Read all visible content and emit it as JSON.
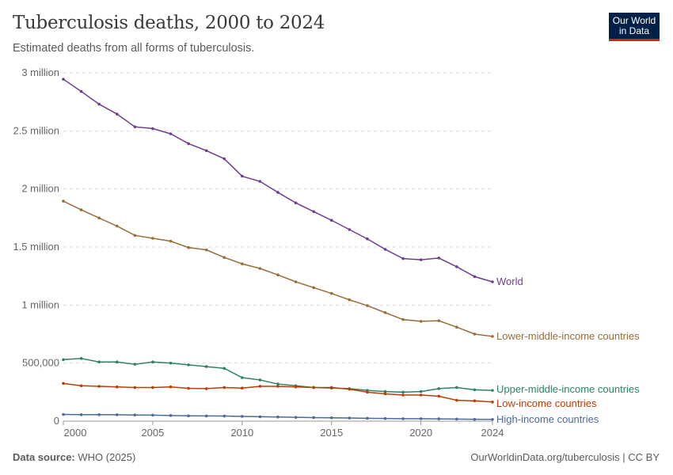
{
  "header": {
    "title": "Tuberculosis deaths, 2000 to 2024",
    "subtitle": "Estimated deaths from all forms of tuberculosis.",
    "logo_text": "Our World in Data"
  },
  "footer": {
    "source_label": "Data source:",
    "source_value": "WHO (2025)",
    "url": "OurWorldinData.org/tuberculosis | CC BY"
  },
  "chart_data": {
    "type": "line",
    "title": "Tuberculosis deaths, 2000 to 2024",
    "subtitle": "Estimated deaths from all forms of tuberculosis.",
    "x": [
      2000,
      2001,
      2002,
      2003,
      2004,
      2005,
      2006,
      2007,
      2008,
      2009,
      2010,
      2011,
      2012,
      2013,
      2014,
      2015,
      2016,
      2017,
      2018,
      2019,
      2020,
      2021,
      2022,
      2023,
      2024
    ],
    "xlim": [
      2000,
      2024
    ],
    "ylim": [
      0,
      3000000
    ],
    "xticks": [
      {
        "v": 2000,
        "label": "2000"
      },
      {
        "v": 2005,
        "label": "2005"
      },
      {
        "v": 2010,
        "label": "2010"
      },
      {
        "v": 2015,
        "label": "2015"
      },
      {
        "v": 2020,
        "label": "2020"
      },
      {
        "v": 2024,
        "label": "2024"
      }
    ],
    "yticks": [
      {
        "v": 0,
        "label": "0"
      },
      {
        "v": 500000,
        "label": "500,000"
      },
      {
        "v": 1000000,
        "label": "1 million"
      },
      {
        "v": 1500000,
        "label": "1.5 million"
      },
      {
        "v": 2000000,
        "label": "2 million"
      },
      {
        "v": 2500000,
        "label": "2.5 million"
      },
      {
        "v": 3000000,
        "label": "3 million"
      }
    ],
    "grid": "horizontal dashed",
    "legend": "inline labels at line ends (right)",
    "series": [
      {
        "name": "World",
        "color": "#6d3e91",
        "values": [
          2945000,
          2840000,
          2730000,
          2645000,
          2535000,
          2520000,
          2475000,
          2390000,
          2330000,
          2260000,
          2110000,
          2065000,
          1970000,
          1880000,
          1805000,
          1730000,
          1650000,
          1570000,
          1480000,
          1400000,
          1390000,
          1405000,
          1330000,
          1245000,
          1200000
        ]
      },
      {
        "name": "Lower-middle-income countries",
        "color": "#996d39",
        "values": [
          1895000,
          1820000,
          1750000,
          1680000,
          1600000,
          1575000,
          1550000,
          1495000,
          1475000,
          1410000,
          1355000,
          1315000,
          1260000,
          1200000,
          1150000,
          1100000,
          1045000,
          995000,
          935000,
          875000,
          860000,
          865000,
          810000,
          750000,
          730000
        ]
      },
      {
        "name": "Upper-middle-income countries",
        "color": "#2c8465",
        "values": [
          530000,
          540000,
          510000,
          510000,
          490000,
          510000,
          500000,
          485000,
          470000,
          455000,
          375000,
          355000,
          320000,
          305000,
          290000,
          285000,
          280000,
          265000,
          255000,
          250000,
          255000,
          280000,
          290000,
          270000,
          265000
        ]
      },
      {
        "name": "Low-income countries",
        "color": "#be3d05",
        "values": [
          325000,
          305000,
          300000,
          295000,
          290000,
          290000,
          295000,
          283000,
          280000,
          290000,
          285000,
          300000,
          300000,
          295000,
          290000,
          290000,
          275000,
          250000,
          235000,
          225000,
          225000,
          215000,
          180000,
          175000,
          165000
        ]
      },
      {
        "name": "High-income countries",
        "color": "#4c6a9c",
        "values": [
          58000,
          56000,
          56000,
          55000,
          53000,
          52000,
          49000,
          46000,
          45000,
          44000,
          41000,
          38000,
          36000,
          33000,
          31000,
          29000,
          27000,
          25000,
          23000,
          21000,
          21000,
          20000,
          18000,
          16000,
          15000
        ]
      }
    ]
  }
}
